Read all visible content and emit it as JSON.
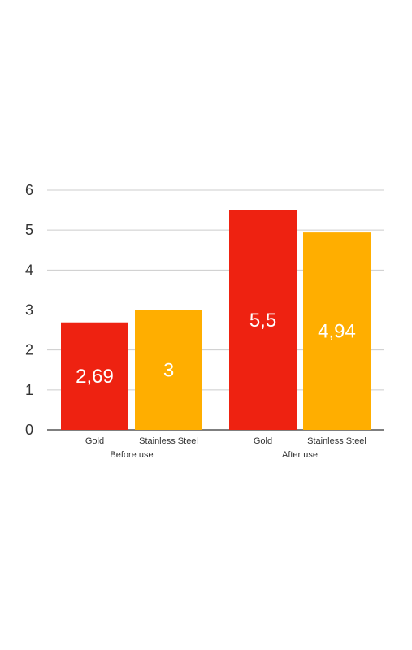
{
  "chart_data": {
    "type": "bar",
    "groups": [
      {
        "label": "Before use",
        "bars": [
          {
            "category": "Gold",
            "value": 2.69,
            "label": "2,69",
            "color": "#ee2211"
          },
          {
            "category": "Stainless Steel",
            "value": 3,
            "label": "3",
            "color": "#ffae00"
          }
        ]
      },
      {
        "label": "After use",
        "bars": [
          {
            "category": "Gold",
            "value": 5.5,
            "label": "5,5",
            "color": "#ee2211"
          },
          {
            "category": "Stainless Steel",
            "value": 4.94,
            "label": "4,94",
            "color": "#ffae00"
          }
        ]
      }
    ],
    "yticks": [
      "0",
      "1",
      "2",
      "3",
      "4",
      "5",
      "6"
    ],
    "ylim": [
      0,
      6
    ],
    "grid": true,
    "title": "",
    "xlabel": "",
    "ylabel": ""
  }
}
